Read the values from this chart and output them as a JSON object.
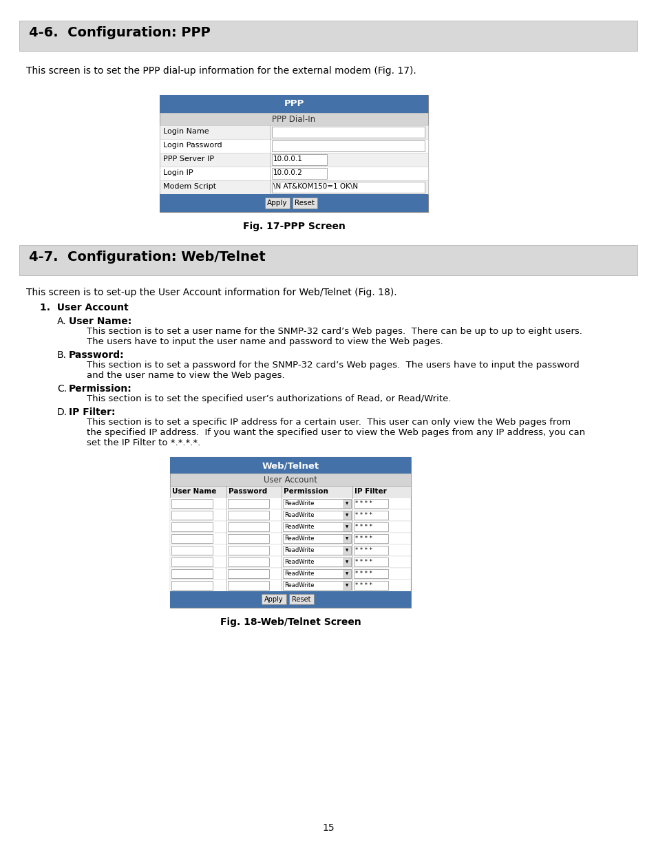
{
  "background_color": "#ffffff",
  "section1_title": "4-6.  Configuration: PPP",
  "section1_body": "This screen is to set the PPP dial-up information for the external modem (Fig. 17).",
  "ppp_table_header": "PPP",
  "ppp_table_subheader": "PPP Dial-In",
  "ppp_rows": [
    [
      "Login Name",
      ""
    ],
    [
      "Login Password",
      ""
    ],
    [
      "PPP Server IP",
      "10.0.0.1"
    ],
    [
      "Login IP",
      "10.0.0.2"
    ],
    [
      "Modem Script",
      "\\N AT&KOM150=1 OK\\N"
    ]
  ],
  "fig17_caption": "Fig. 17-PPP Screen",
  "section2_title": "4-7.  Configuration: Web/Telnet",
  "section2_body": "This screen is to set-up the User Account information for Web/Telnet (Fig. 18).",
  "section2_list_title": "User Account",
  "section2_items": [
    {
      "letter": "A.",
      "label": "User Name:",
      "text": "This section is to set a user name for the SNMP-32 card’s Web pages.  There can be up to up to eight users.\nThe users have to input the user name and password to view the Web pages."
    },
    {
      "letter": "B.",
      "label": "Password:",
      "text": "This section is to set a password for the SNMP-32 card’s Web pages.  The users have to input the password\nand the user name to view the Web pages."
    },
    {
      "letter": "C.",
      "label": "Permission:",
      "text": "This section is to set the specified user’s authorizations of Read, or Read/Write."
    },
    {
      "letter": "D.",
      "label": "IP Filter:",
      "text": "This section is to set a specific IP address for a certain user.  This user can only view the Web pages from\nthe specified IP address.  If you want the specified user to view the Web pages from any IP address, you can\nset the IP Filter to *.*.*.*."
    }
  ],
  "web_table_header": "Web/Telnet",
  "web_table_subheader": "User Account",
  "web_col_headers": [
    "User Name",
    "Password",
    "Permission",
    "IP Filter"
  ],
  "web_rows": 8,
  "fig18_caption": "Fig. 18-Web/Telnet Screen",
  "page_number": "15",
  "table_header_blue": "#4472a8",
  "section_header_bg": "#d8d8d8"
}
